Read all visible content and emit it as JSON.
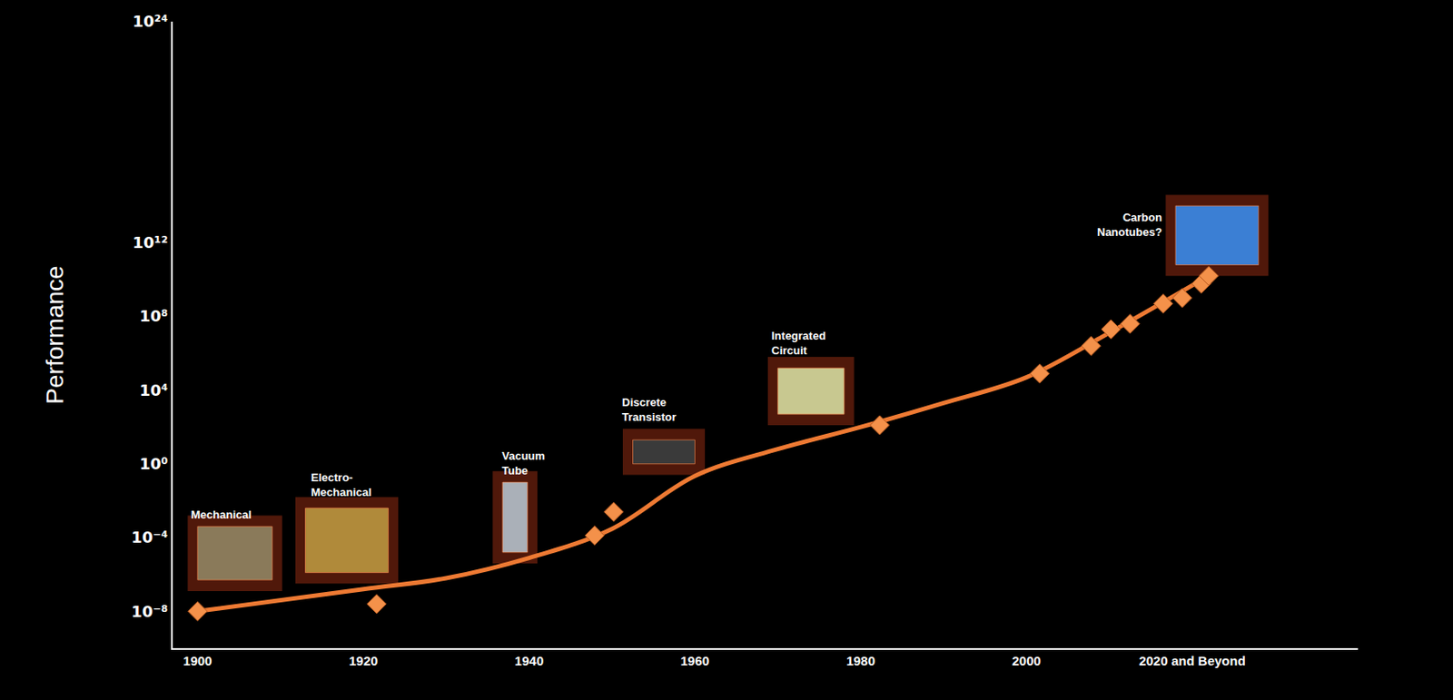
{
  "chart_data": {
    "type": "line",
    "y_label": "Performance",
    "log": "y",
    "grid": false,
    "xlim": [
      1897,
      2040
    ],
    "xticks": [
      1900,
      1920,
      1940,
      1960,
      1980,
      2000,
      {
        "value": 2020,
        "label": "2020 and Beyond"
      }
    ],
    "ylim": [
      1e-10,
      1e+24
    ],
    "yticks": [
      {
        "value": 1e-08,
        "label": "10⁻⁸"
      },
      {
        "value": 0.0001,
        "label": "10⁻⁴"
      },
      {
        "value": 1,
        "label": "10⁰"
      },
      {
        "value": 10000.0,
        "label": "10⁴"
      },
      {
        "value": 100000000.0,
        "label": "10⁸"
      },
      {
        "value": 1000000000000.0,
        "label": "10¹²"
      },
      {
        "value": 1e+24,
        "label": "10²⁴"
      }
    ],
    "series": [
      {
        "type": "line",
        "line_style": "solid",
        "color": "#ee7a33",
        "x": [
          1900,
          1920,
          1930,
          1940,
          1950,
          1960,
          1970,
          1980,
          1990,
          2000,
          2010,
          2022
        ],
        "values": [
          1e-08,
          1.6e-07,
          6.3e-07,
          7.9e-06,
          0.0003,
          0.22,
          6.3,
          100,
          2000,
          50000.0,
          13000000.0,
          16000000000.0
        ]
      },
      {
        "type": "scatter",
        "marker": "diamond",
        "color": "#f4914a",
        "x": [
          1900,
          1921.6,
          1947.9,
          1950.2,
          1982.3,
          2001.6,
          2007.8,
          2010.2,
          2012.5,
          2016.5,
          2018.8,
          2021.1,
          2022
        ],
        "values": [
          1e-08,
          2.5e-08,
          0.00013,
          0.0025,
          126,
          80000.0,
          2500000.0,
          20000000.0,
          40000000.0,
          500000000.0,
          1000000000.0,
          6000000000.0,
          16000000000.0
        ]
      }
    ],
    "annotations": [
      "Mechanical",
      "Electro-Mechanical",
      "Vacuum Tube",
      "Discrete Transistor",
      "Integrated Circuit",
      "Carbon Nanotubes?"
    ]
  }
}
